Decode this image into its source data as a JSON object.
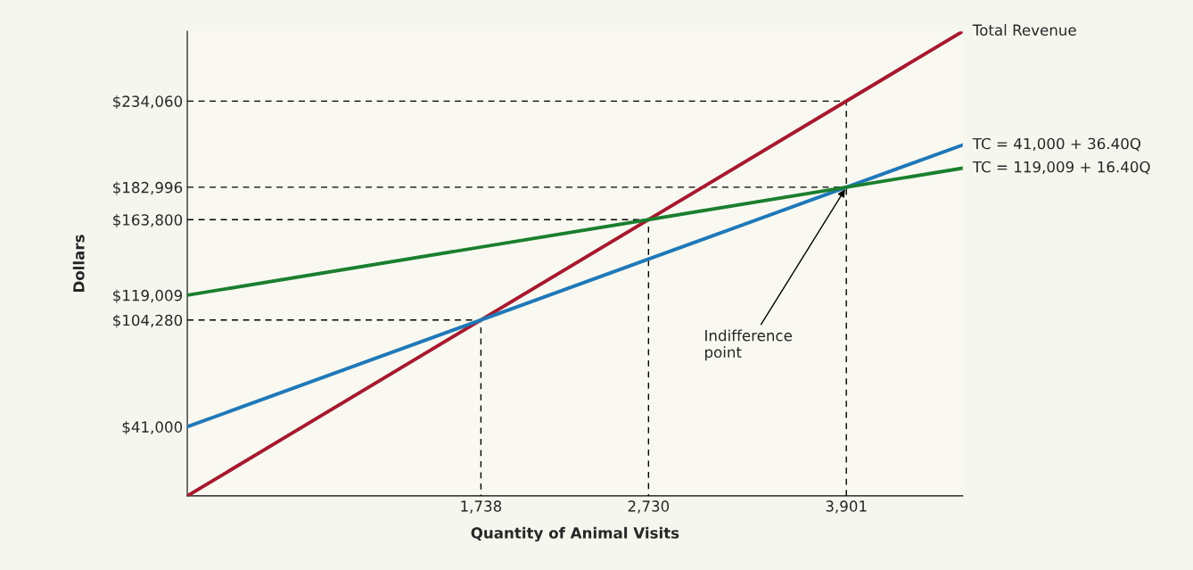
{
  "chart_data": {
    "type": "line",
    "xlabel": "Quantity of Animal Visits",
    "ylabel": "Dollars",
    "xlim": [
      0,
      4590
    ],
    "ylim": [
      0,
      275400
    ],
    "xticks": [
      {
        "value": 1738,
        "label": "1,738"
      },
      {
        "value": 2730,
        "label": "2,730"
      },
      {
        "value": 3901,
        "label": "3,901"
      }
    ],
    "yticks": [
      {
        "value": 41000,
        "label": "$41,000"
      },
      {
        "value": 104280,
        "label": "$104,280"
      },
      {
        "value": 119009,
        "label": "$119,009"
      },
      {
        "value": 163800,
        "label": "$163,800"
      },
      {
        "value": 182996,
        "label": "$182,996"
      },
      {
        "value": 234060,
        "label": "$234,060"
      }
    ],
    "grid": false,
    "legend": false,
    "marker": "none",
    "series": [
      {
        "x": [
          0,
          1738,
          1738
        ],
        "values": [
          104280,
          104280,
          0
        ],
        "color": "#000000",
        "line_style": "dashed"
      },
      {
        "x": [
          0,
          2730,
          2730
        ],
        "values": [
          163800,
          163800,
          0
        ],
        "color": "#000000",
        "line_style": "dashed"
      },
      {
        "x": [
          0,
          3901,
          3901
        ],
        "values": [
          234060,
          234060,
          0
        ],
        "color": "#000000",
        "line_style": "dashed"
      },
      {
        "x": [
          0,
          3901
        ],
        "values": [
          182996,
          182996
        ],
        "color": "#000000",
        "line_style": "dashed"
      },
      {
        "name": "Total Revenue",
        "x": [
          0,
          4590
        ],
        "values": [
          0,
          275400
        ],
        "color": "#a6192e",
        "line_style": "solid"
      },
      {
        "name": "TC = 41,000 + 36.40Q",
        "x": [
          0,
          4590
        ],
        "values": [
          41000,
          208076
        ],
        "color": "#1f78b8",
        "line_style": "solid"
      },
      {
        "name": "TC = 119,009 + 16.40Q",
        "x": [
          0,
          4590
        ],
        "values": [
          119009,
          194285
        ],
        "color": "#1a7f2e",
        "line_style": "solid"
      }
    ],
    "annotations": [
      {
        "text": "Indifference\npoint",
        "x": 3901,
        "y": 182996
      }
    ]
  }
}
